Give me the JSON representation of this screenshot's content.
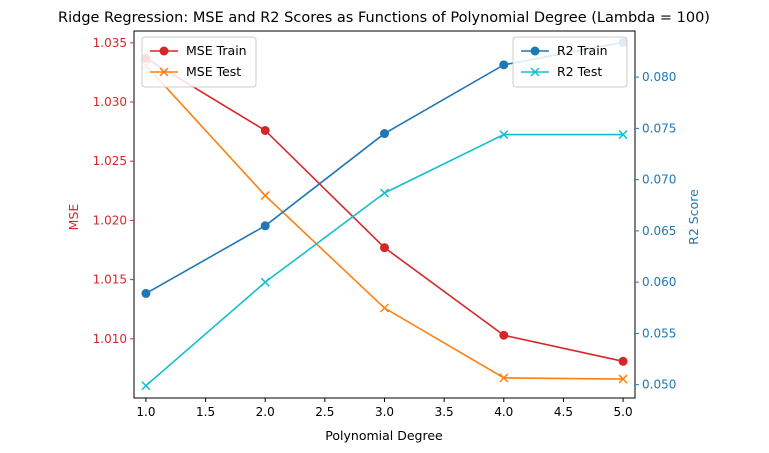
{
  "chart_data": {
    "type": "line",
    "title": "Ridge Regression: MSE and R2 Scores as Functions of Polynomial Degree (Lambda = 100)",
    "xlabel": "Polynomial Degree",
    "ylabel_left": "MSE",
    "ylabel_right": "R2 Score",
    "x": [
      1.0,
      2.0,
      3.0,
      4.0,
      5.0
    ],
    "xlim": [
      0.9,
      5.1
    ],
    "ylim_left": [
      1.005,
      1.036
    ],
    "ylim_right": [
      0.0487,
      0.0845
    ],
    "x_ticks": [
      1.0,
      1.5,
      2.0,
      2.5,
      3.0,
      3.5,
      4.0,
      4.5,
      5.0
    ],
    "x_tick_labels": [
      "1.0",
      "1.5",
      "2.0",
      "2.5",
      "3.0",
      "3.5",
      "4.0",
      "4.5",
      "5.0"
    ],
    "y_left_ticks": [
      1.01,
      1.015,
      1.02,
      1.025,
      1.03,
      1.035
    ],
    "y_left_tick_labels": [
      "1.010",
      "1.015",
      "1.020",
      "1.025",
      "1.030",
      "1.035"
    ],
    "y_right_ticks": [
      0.05,
      0.055,
      0.06,
      0.065,
      0.07,
      0.075,
      0.08
    ],
    "y_right_tick_labels": [
      "0.050",
      "0.055",
      "0.060",
      "0.065",
      "0.070",
      "0.075",
      "0.080"
    ],
    "grid": false,
    "left_axis_color": "#d62728",
    "right_axis_color": "#1f77b4",
    "series": [
      {
        "name": "MSE Train",
        "axis": "left",
        "marker": "circle",
        "color": "#d62728",
        "values": [
          1.0337,
          1.0276,
          1.0177,
          1.0103,
          1.0081
        ]
      },
      {
        "name": "MSE Test",
        "axis": "left",
        "marker": "x",
        "color": "#ff7f0e",
        "values": [
          1.0331,
          1.0221,
          1.0126,
          1.0067,
          1.0066
        ]
      },
      {
        "name": "R2 Train",
        "axis": "right",
        "marker": "circle",
        "color": "#1f77b4",
        "values": [
          0.0589,
          0.0655,
          0.0745,
          0.0812,
          0.0834
        ]
      },
      {
        "name": "R2 Test",
        "axis": "right",
        "marker": "x",
        "color": "#17becf",
        "values": [
          0.0499,
          0.06,
          0.0687,
          0.0744,
          0.0744
        ]
      }
    ],
    "legends": [
      {
        "placement": "top-left",
        "series": [
          "MSE Train",
          "MSE Test"
        ]
      },
      {
        "placement": "top-right",
        "series": [
          "R2 Train",
          "R2 Test"
        ]
      }
    ]
  }
}
